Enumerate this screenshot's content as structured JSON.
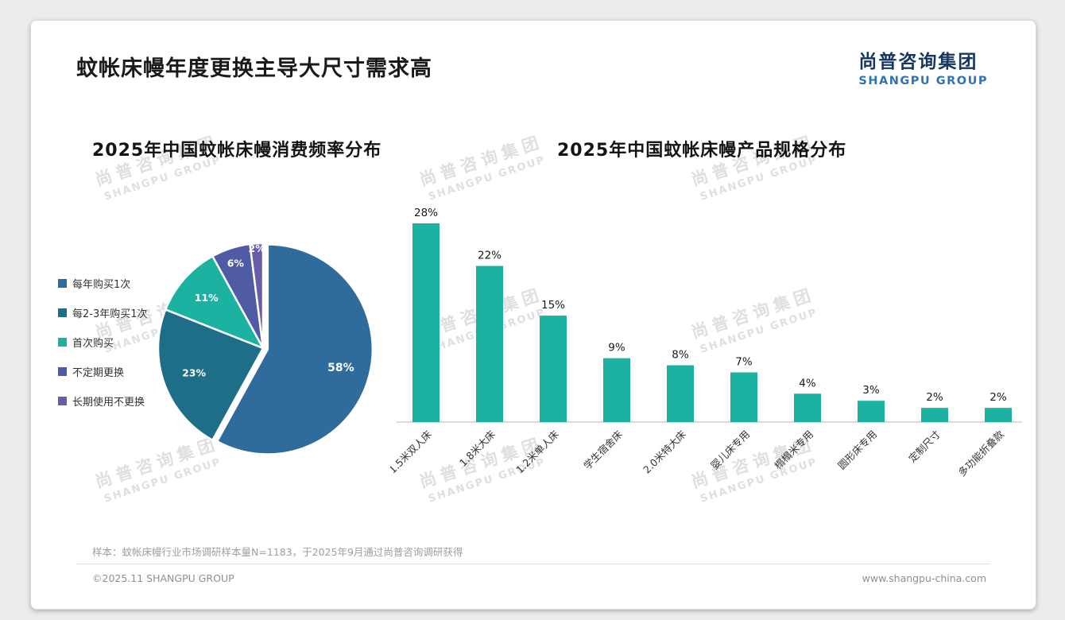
{
  "page": {
    "title": "蚊帐床幔年度更换主导大尺寸需求高",
    "logo": {
      "cn": "尚普咨询集团",
      "en": "SHANGPU GROUP"
    },
    "watermark": {
      "cn": "尚普咨询集团",
      "en": "SHANGPU GROUP"
    },
    "footnote": "样本：蚊帐床幔行业市场调研样本量N=1183，于2025年9月通过尚普咨询调研获得",
    "footer_left": "©2025.11 SHANGPU GROUP",
    "footer_right": "www.shangpu-china.com"
  },
  "chart_data": [
    {
      "type": "pie",
      "title": "2025年中国蚊帐床幔消费频率分布",
      "labels": [
        "每年购买1次",
        "每2-3年购买1次",
        "首次购买",
        "不定期更换",
        "长期使用不更换"
      ],
      "values": [
        58,
        23,
        11,
        6,
        2
      ],
      "colors": [
        "#2F6B9B",
        "#1F6E87",
        "#1CB2A2",
        "#4F5BA4",
        "#6A5DA8"
      ],
      "value_suffix": "%",
      "legend_position": "left"
    },
    {
      "type": "bar",
      "title": "2025年中国蚊帐床幔产品规格分布",
      "categories": [
        "1.5米双人床",
        "1.8米大床",
        "1.2米单人床",
        "学生宿舍床",
        "2.0米特大床",
        "婴儿床专用",
        "榻榻米专用",
        "圆形床专用",
        "定制尺寸",
        "多功能折叠款"
      ],
      "values": [
        28,
        22,
        15,
        9,
        8,
        7,
        4,
        3,
        2,
        2
      ],
      "bar_color": "#1CB2A2",
      "value_suffix": "%",
      "ylim": [
        0,
        30
      ],
      "grid": false,
      "xlabel": "",
      "ylabel": ""
    }
  ]
}
